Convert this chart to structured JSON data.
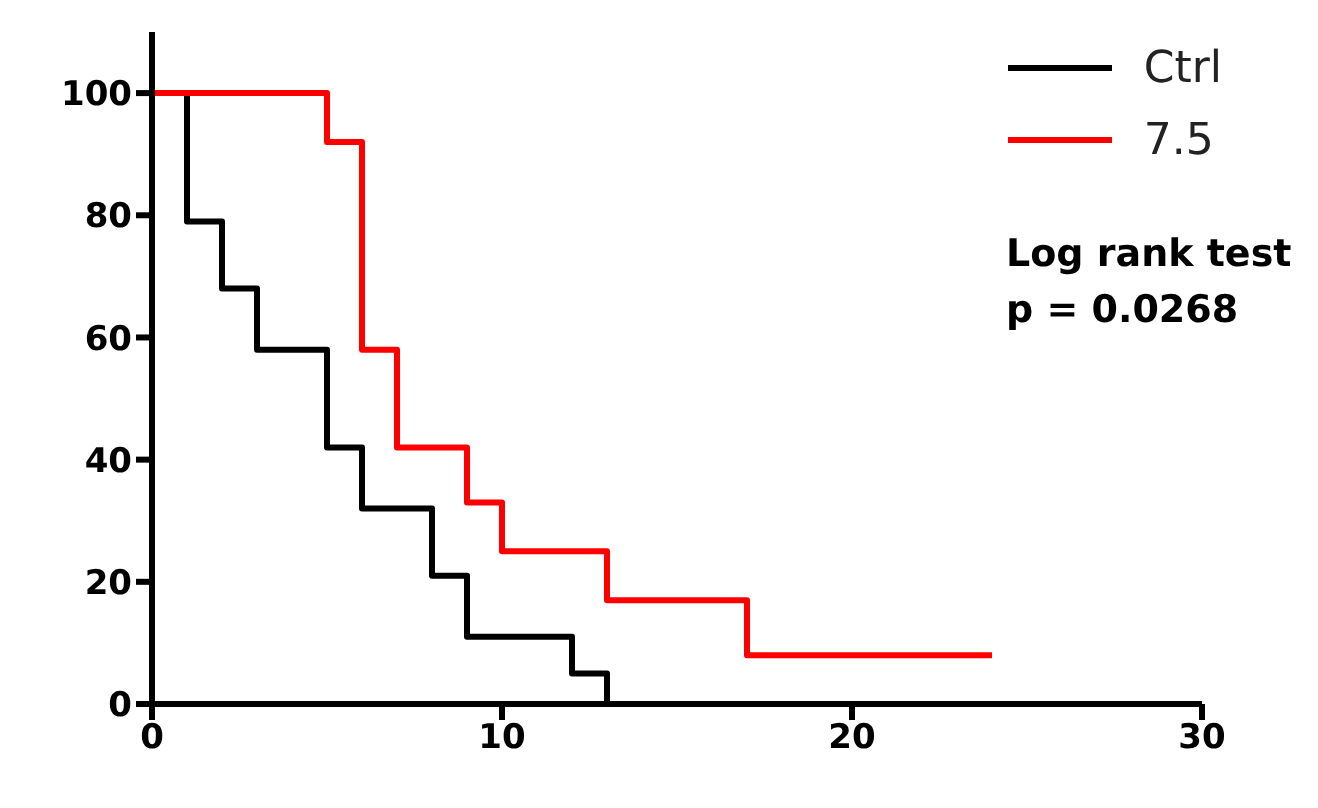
{
  "chart_data": {
    "type": "step",
    "xlim": [
      0,
      30
    ],
    "xticks": [
      0,
      10,
      20,
      30
    ],
    "ylim": [
      0,
      110
    ],
    "yticks": [
      0,
      20,
      40,
      60,
      80,
      100
    ],
    "grid": false,
    "legend": "top right",
    "marker": "none",
    "line_style": "solid",
    "annotations": [
      "Log rank test",
      "p = 0.0268"
    ],
    "series": [
      {
        "name": "Ctrl",
        "color": "#000000",
        "x": [
          0,
          1,
          2,
          3,
          5,
          6,
          8,
          9,
          12,
          13
        ],
        "values": [
          100,
          79,
          68,
          58,
          42,
          32,
          21,
          11,
          5,
          0
        ]
      },
      {
        "name": "7.5",
        "color": "#ff0000",
        "x": [
          0,
          5,
          6,
          7,
          9,
          10,
          13,
          17,
          24
        ],
        "values": [
          100,
          92,
          58,
          42,
          33,
          25,
          17,
          8,
          8
        ]
      }
    ]
  }
}
